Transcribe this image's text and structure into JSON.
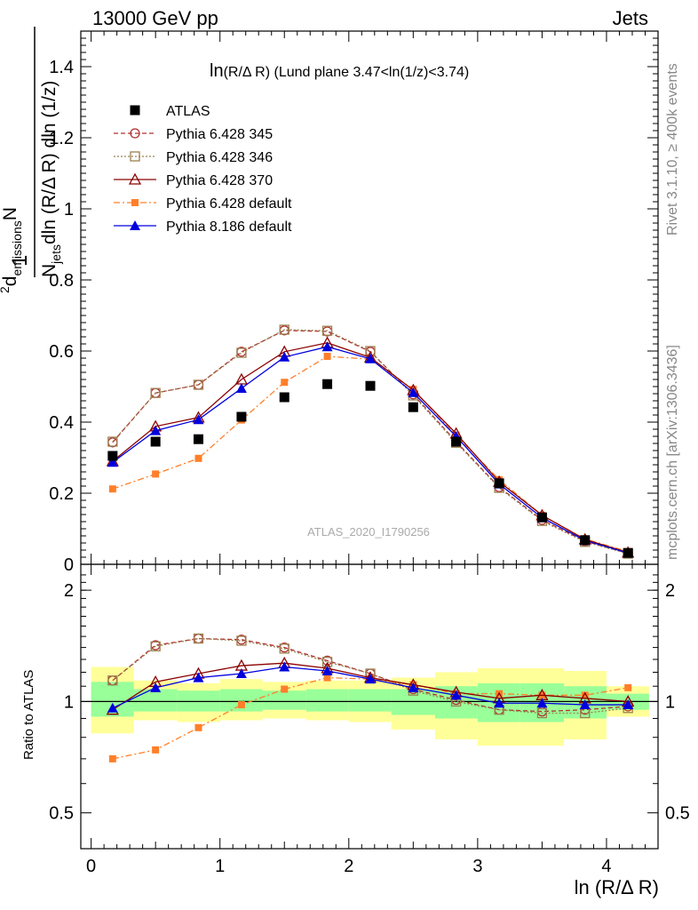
{
  "header": {
    "energy": "13000 GeV pp",
    "category": "Jets"
  },
  "side": {
    "rivet": "Rivet 3.1.10, ≥ 400k events",
    "mcplots": "mcplots.cern.ch [arXiv:1306.3436]"
  },
  "ratio": {
    "ylabel": "Ratio to ATLAS",
    "ylim": [
      0.4,
      2.35
    ],
    "log_scale": true,
    "ytick_labels": [
      "0.5",
      "1",
      "2"
    ],
    "ytick_labels_right": [
      "0.5",
      "1",
      "2"
    ],
    "bands": [
      {
        "x0": 0.0,
        "x1": 0.33,
        "yellow": [
          0.82,
          1.24
        ],
        "green": [
          0.91,
          1.13
        ]
      },
      {
        "x0": 0.33,
        "x1": 0.67,
        "yellow": [
          0.89,
          1.14
        ],
        "green": [
          0.94,
          1.08
        ]
      },
      {
        "x0": 0.67,
        "x1": 1.0,
        "yellow": [
          0.88,
          1.12
        ],
        "green": [
          0.94,
          1.07
        ]
      },
      {
        "x0": 1.0,
        "x1": 1.33,
        "yellow": [
          0.89,
          1.15
        ],
        "green": [
          0.94,
          1.08
        ]
      },
      {
        "x0": 1.33,
        "x1": 1.67,
        "yellow": [
          0.9,
          1.13
        ],
        "green": [
          0.95,
          1.07
        ]
      },
      {
        "x0": 1.67,
        "x1": 2.0,
        "yellow": [
          0.89,
          1.14
        ],
        "green": [
          0.94,
          1.08
        ]
      },
      {
        "x0": 2.0,
        "x1": 2.33,
        "yellow": [
          0.88,
          1.14
        ],
        "green": [
          0.94,
          1.08
        ]
      },
      {
        "x0": 2.33,
        "x1": 2.67,
        "yellow": [
          0.84,
          1.16
        ],
        "green": [
          0.92,
          1.08
        ]
      },
      {
        "x0": 2.67,
        "x1": 3.0,
        "yellow": [
          0.79,
          1.2
        ],
        "green": [
          0.9,
          1.1
        ]
      },
      {
        "x0": 3.0,
        "x1": 3.33,
        "yellow": [
          0.76,
          1.23
        ],
        "green": [
          0.88,
          1.12
        ]
      },
      {
        "x0": 3.33,
        "x1": 3.67,
        "yellow": [
          0.76,
          1.23
        ],
        "green": [
          0.88,
          1.12
        ]
      },
      {
        "x0": 3.67,
        "x1": 4.0,
        "yellow": [
          0.79,
          1.21
        ],
        "green": [
          0.9,
          1.1
        ]
      },
      {
        "x0": 4.0,
        "x1": 4.33,
        "yellow": [
          0.91,
          1.1
        ],
        "green": [
          0.95,
          1.05
        ]
      }
    ],
    "series": [
      {
        "name": "Pythia 6.428 345",
        "values": [
          1.14,
          1.42,
          1.48,
          1.47,
          1.4,
          1.29,
          1.19,
          1.08,
          1.01,
          0.95,
          0.94,
          0.95,
          0.97
        ]
      },
      {
        "name": "Pythia 6.428 346",
        "values": [
          1.14,
          1.41,
          1.48,
          1.46,
          1.39,
          1.28,
          1.19,
          1.07,
          1.0,
          0.95,
          0.93,
          0.93,
          0.96
        ]
      },
      {
        "name": "Pythia 6.428 370",
        "values": [
          0.95,
          1.13,
          1.19,
          1.25,
          1.27,
          1.23,
          1.16,
          1.11,
          1.06,
          1.02,
          1.04,
          1.02,
          1.0
        ]
      },
      {
        "name": "Pythia 6.428 default",
        "values": [
          0.7,
          0.74,
          0.85,
          0.98,
          1.08,
          1.16,
          1.15,
          1.11,
          1.05,
          1.05,
          1.04,
          1.04,
          1.09
        ]
      },
      {
        "name": "Pythia 8.186 default",
        "values": [
          0.96,
          1.09,
          1.16,
          1.19,
          1.24,
          1.21,
          1.15,
          1.09,
          1.04,
          0.99,
          0.99,
          0.98,
          0.98
        ]
      }
    ]
  },
  "chart_data": {
    "type": "scatter",
    "title_main": "ln",
    "title_sub": "(R/Δ R) (Lund plane 3.47<ln(1/z)<3.74)",
    "xlabel": "ln (R/Δ R)",
    "ylabel": {
      "one": "1",
      "num_sup": "2",
      "num_d": "d",
      "num_sub": "emissions",
      "num_rest": "N",
      "den_n": "N",
      "den_jets": "jets",
      "den_rest": "dln (R/Δ R) dln (1/z)"
    },
    "analysis": "ATLAS_2020_I1790256",
    "xlim": [
      -0.08,
      4.4
    ],
    "ylim": [
      0.0,
      1.5
    ],
    "xtick_labels": [
      "0",
      "1",
      "2",
      "3",
      "4"
    ],
    "ytick_labels": [
      "0",
      "0.2",
      "0.4",
      "0.6",
      "0.8",
      "1",
      "1.2",
      "1.4"
    ],
    "grid": false,
    "legend_position": "top-left",
    "x": [
      0.167,
      0.5,
      0.833,
      1.167,
      1.5,
      1.833,
      2.167,
      2.5,
      2.833,
      3.167,
      3.5,
      3.833,
      4.167
    ],
    "series": [
      {
        "name": "ATLAS",
        "color": "#000000",
        "marker": "filled-square",
        "line": "none",
        "values": [
          0.305,
          0.345,
          0.352,
          0.415,
          0.47,
          0.507,
          0.502,
          0.442,
          0.345,
          0.228,
          0.132,
          0.068,
          0.032
        ]
      },
      {
        "name": "Pythia 6.428 345",
        "color": "#b03030",
        "marker": "open-circle",
        "line": "dashed",
        "values": [
          0.343,
          0.482,
          0.505,
          0.598,
          0.658,
          0.655,
          0.598,
          0.478,
          0.345,
          0.217,
          0.125,
          0.065,
          0.031
        ]
      },
      {
        "name": "Pythia 6.428 346",
        "color": "#9a8050",
        "marker": "open-square",
        "line": "dotted",
        "values": [
          0.345,
          0.482,
          0.505,
          0.595,
          0.66,
          0.657,
          0.6,
          0.475,
          0.342,
          0.215,
          0.122,
          0.063,
          0.03
        ]
      },
      {
        "name": "Pythia 6.428 370",
        "color": "#8b0000",
        "marker": "open-triangle",
        "line": "solid",
        "values": [
          0.29,
          0.388,
          0.413,
          0.52,
          0.598,
          0.623,
          0.582,
          0.49,
          0.368,
          0.232,
          0.138,
          0.07,
          0.033
        ]
      },
      {
        "name": "Pythia 6.428 default",
        "color": "#ff7f2a",
        "marker": "filled-small-square",
        "line": "dashdot",
        "values": [
          0.212,
          0.254,
          0.298,
          0.406,
          0.512,
          0.585,
          0.577,
          0.492,
          0.363,
          0.238,
          0.138,
          0.071,
          0.036
        ]
      },
      {
        "name": "Pythia 8.186 default",
        "color": "#0000dd",
        "marker": "filled-triangle",
        "line": "solid",
        "values": [
          0.287,
          0.376,
          0.407,
          0.495,
          0.583,
          0.612,
          0.578,
          0.483,
          0.36,
          0.226,
          0.131,
          0.067,
          0.032
        ]
      }
    ]
  }
}
